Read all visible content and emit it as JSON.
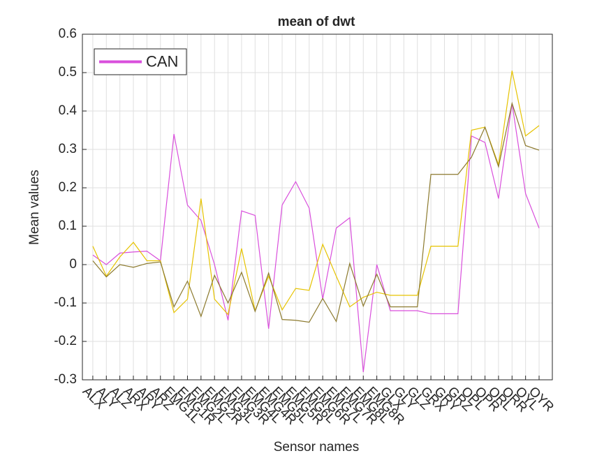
{
  "chart_data": {
    "type": "line",
    "title": "mean of dwt",
    "x_label": "Sensor names",
    "y_label": "Mean values",
    "categories": [
      "ALX",
      "ALY",
      "ALZ",
      "ARX",
      "ARY",
      "ARZ",
      "EMG1L",
      "EMG1R",
      "EMG2L",
      "EMG2R",
      "EMG3L",
      "EMG3R",
      "EMG4L",
      "EMG4R",
      "EMG5L",
      "EMG5R",
      "EMG6L",
      "EMG6R",
      "EMG7L",
      "EMG7R",
      "EMG8L",
      "EMG8R",
      "GLX",
      "GLY",
      "GLZ",
      "GRX",
      "GRY",
      "GRZ",
      "OPL",
      "OPR",
      "ORL",
      "ORR",
      "OYL",
      "OYR"
    ],
    "series": [
      {
        "name": "CAN",
        "color": "#d94fdc",
        "values": [
          0.025,
          0.0,
          0.03,
          0.033,
          0.035,
          0.01,
          0.34,
          0.155,
          0.115,
          0.0,
          -0.145,
          0.14,
          0.128,
          -0.167,
          0.155,
          0.216,
          0.147,
          -0.09,
          0.095,
          0.122,
          -0.28,
          0.0,
          -0.12,
          -0.12,
          -0.12,
          -0.128,
          -0.128,
          -0.128,
          0.335,
          0.318,
          0.172,
          0.42,
          0.185,
          0.095
        ]
      },
      {
        "color": "#e6c300",
        "values": [
          0.048,
          -0.03,
          0.02,
          0.058,
          0.01,
          0.01,
          -0.125,
          -0.09,
          0.172,
          -0.09,
          -0.13,
          0.042,
          -0.12,
          -0.03,
          -0.118,
          -0.062,
          -0.067,
          0.053,
          -0.03,
          -0.11,
          -0.085,
          -0.072,
          -0.08,
          -0.08,
          -0.08,
          0.048,
          0.048,
          0.048,
          0.35,
          0.358,
          0.26,
          0.505,
          0.335,
          0.362
        ]
      },
      {
        "color": "#8c7a2e",
        "values": [
          0.01,
          -0.032,
          0.0,
          -0.007,
          0.003,
          0.007,
          -0.11,
          -0.043,
          -0.135,
          -0.028,
          -0.1,
          -0.02,
          -0.122,
          -0.022,
          -0.143,
          -0.145,
          -0.15,
          -0.088,
          -0.148,
          0.003,
          -0.108,
          -0.025,
          -0.11,
          -0.11,
          -0.11,
          0.235,
          0.235,
          0.235,
          0.28,
          0.358,
          0.255,
          0.42,
          0.31,
          0.298
        ]
      }
    ],
    "ylim": [
      -0.3,
      0.6
    ],
    "yticks": [
      -0.3,
      -0.2,
      -0.1,
      0,
      0.1,
      0.2,
      0.3,
      0.4,
      0.5,
      0.6
    ],
    "grid": true,
    "legend": "northwest"
  }
}
